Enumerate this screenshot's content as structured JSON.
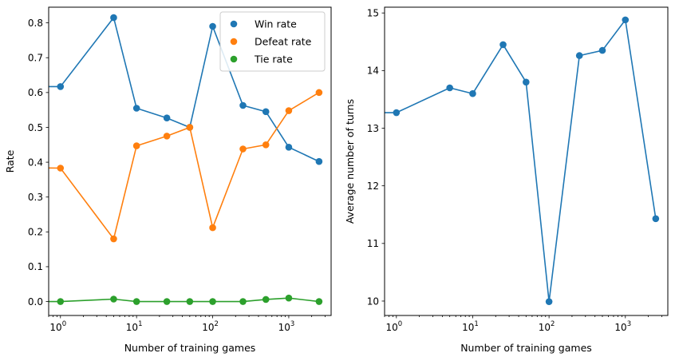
{
  "chart_data": [
    {
      "type": "line",
      "xscale": "log",
      "xlim": [
        0.7,
        3600
      ],
      "ylim": [
        -0.04,
        0.845
      ],
      "x_ticks": [
        1,
        10,
        100,
        1000
      ],
      "x_tick_labels": [
        "10",
        "10",
        "10",
        "10"
      ],
      "x_tick_exponents": [
        "0",
        "1",
        "2",
        "3"
      ],
      "y_ticks": [
        0.0,
        0.1,
        0.2,
        0.3,
        0.4,
        0.5,
        0.6,
        0.7,
        0.8
      ],
      "y_tick_labels": [
        "0.0",
        "0.1",
        "0.2",
        "0.3",
        "0.4",
        "0.5",
        "0.6",
        "0.7",
        "0.8"
      ],
      "xlabel": "Number of training games",
      "ylabel": "Rate",
      "legend_position": "top-right",
      "x": [
        0,
        1,
        5,
        10,
        25,
        50,
        100,
        250,
        500,
        1000,
        2500
      ],
      "series": [
        {
          "name": "Win rate",
          "color": "#1f77b4",
          "values": [
            0.617,
            0.617,
            0.815,
            0.555,
            0.527,
            0.5,
            0.79,
            0.563,
            0.545,
            0.443,
            0.402
          ]
        },
        {
          "name": "Defeat rate",
          "color": "#ff7f0e",
          "values": [
            0.385,
            0.383,
            0.18,
            0.447,
            0.475,
            0.5,
            0.212,
            0.438,
            0.45,
            0.548,
            0.6
          ]
        },
        {
          "name": "Tie rate",
          "color": "#2ca02c",
          "values": [
            0.0,
            0.0,
            0.007,
            0.0,
            0.0,
            0.0,
            0.0,
            0.0,
            0.006,
            0.01,
            0.0
          ]
        }
      ]
    },
    {
      "type": "line",
      "xscale": "log",
      "xlim": [
        0.7,
        3600
      ],
      "ylim": [
        9.75,
        15.1
      ],
      "x_ticks": [
        1,
        10,
        100,
        1000
      ],
      "x_tick_labels": [
        "10",
        "10",
        "10",
        "10"
      ],
      "x_tick_exponents": [
        "0",
        "1",
        "2",
        "3"
      ],
      "y_ticks": [
        10,
        11,
        12,
        13,
        14,
        15
      ],
      "y_tick_labels": [
        "10",
        "11",
        "12",
        "13",
        "14",
        "15"
      ],
      "xlabel": "Number of training games",
      "ylabel": "Average number of turns",
      "x": [
        0,
        1,
        5,
        10,
        25,
        50,
        100,
        250,
        500,
        1000,
        2500
      ],
      "series": [
        {
          "color": "#1f77b4",
          "values": [
            13.27,
            13.27,
            13.7,
            13.6,
            14.45,
            13.8,
            9.99,
            14.26,
            14.35,
            14.88,
            11.43
          ]
        }
      ]
    }
  ]
}
